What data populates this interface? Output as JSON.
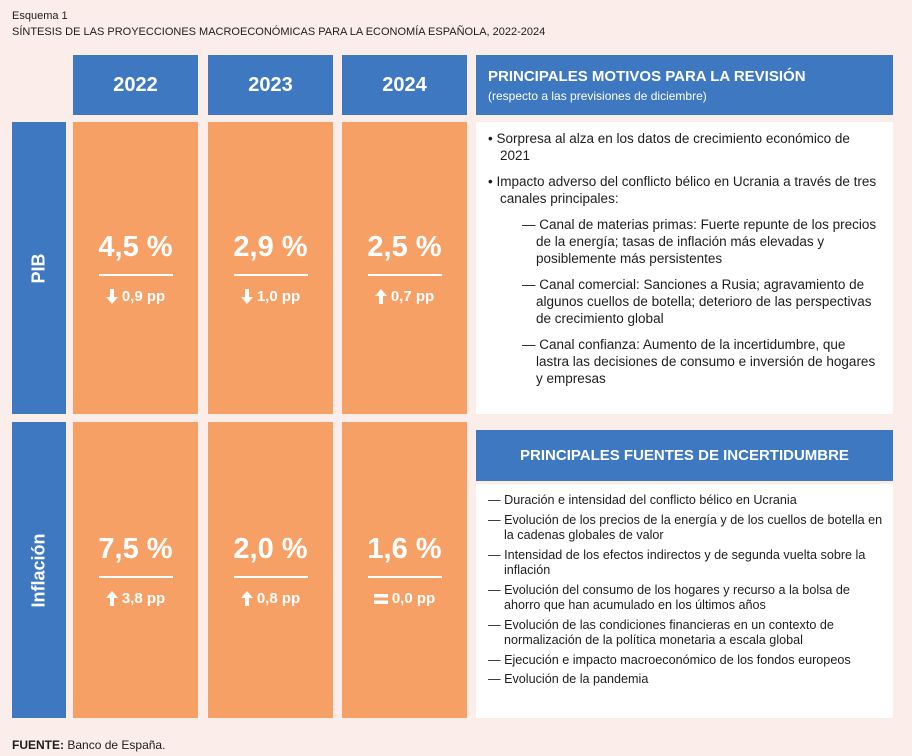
{
  "header": {
    "label": "Esquema 1",
    "title": "SÍNTESIS DE LAS PROYECCIONES MACROECONÓMICAS PARA LA ECONOMÍA ESPAÑOLA, 2022-2024"
  },
  "years": [
    "2022",
    "2023",
    "2024"
  ],
  "rows": [
    {
      "label": "PIB",
      "cells": [
        {
          "value": "4,5 %",
          "change": "0,9 pp"
        },
        {
          "value": "2,9 %",
          "change": "1,0 pp"
        },
        {
          "value": "2,5 %",
          "change": "0,7 pp"
        }
      ]
    },
    {
      "label": "Inflación",
      "cells": [
        {
          "value": "7,5 %",
          "change": "3,8 pp"
        },
        {
          "value": "2,0 %",
          "change": "0,8 pp"
        },
        {
          "value": "1,6 %",
          "change": "0,0 pp"
        }
      ]
    }
  ],
  "revision": {
    "title": "PRINCIPALES MOTIVOS PARA LA REVISIÓN",
    "subtitle": "(respecto a las previsiones de diciembre)",
    "bullets": [
      "• Sorpresa al alza en los datos de crecimiento económico de 2021",
      "• Impacto adverso del conflicto bélico en Ucrania a través de tres canales principales:"
    ],
    "subbullets": [
      "— Canal de materias primas: Fuerte repunte de los precios de la energía; tasas de inflación más elevadas y posiblemente más persistentes",
      "— Canal comercial: Sanciones a Rusia; agravamiento de algunos cuellos de botella; deterioro de las perspectivas de crecimiento global",
      "— Canal confianza: Aumento de la incertidumbre, que lastra las decisiones de consumo e inversión de hogares y empresas"
    ]
  },
  "uncertainty": {
    "title": "PRINCIPALES FUENTES DE INCERTIDUMBRE",
    "items": [
      "— Duración e intensidad del conflicto bélico en Ucrania",
      "— Evolución de los precios de la energía y de los cuellos de botella en la cadenas globales de valor",
      "— Intensidad de los efectos indirectos y de segunda vuelta sobre la inflación",
      "— Evolución del consumo de los hogares y recurso a la bolsa de ahorro que han acumulado en los últimos años",
      "— Evolución de las condiciones financieras en un contexto de normalización de la política monetaria a escala global",
      "— Ejecución e impacto macroeconómico de los fondos europeos",
      "— Evolución de la pandemia"
    ]
  },
  "footer": {
    "label": "FUENTE:",
    "text": "Banco de España."
  }
}
